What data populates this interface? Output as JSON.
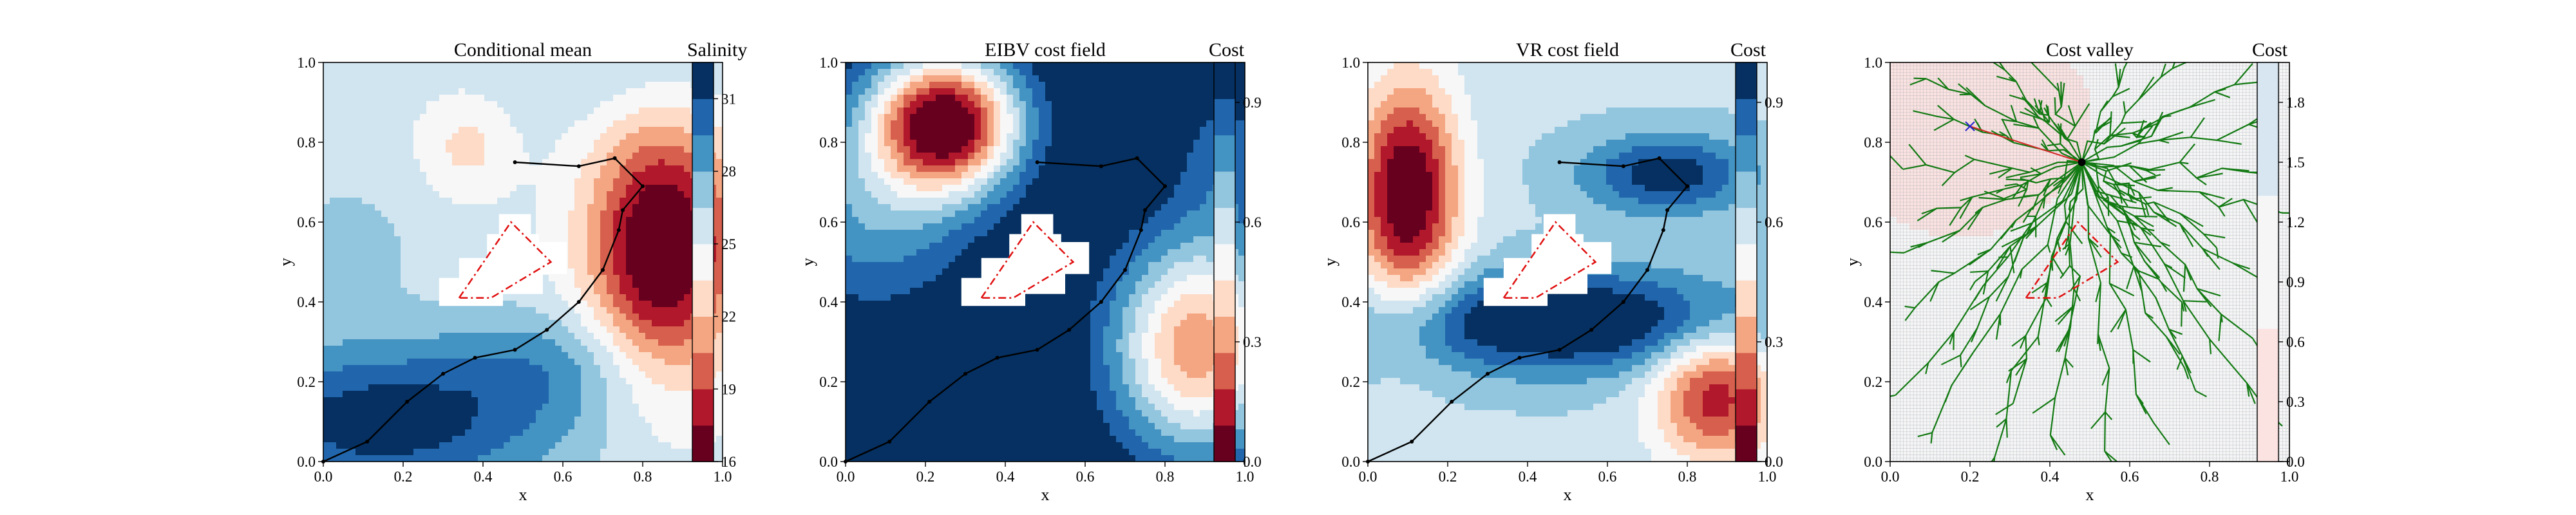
{
  "chart_data": [
    {
      "type": "heatmap",
      "title": "Conditional mean",
      "xlabel": "x",
      "ylabel": "y",
      "xlim": [
        0,
        1
      ],
      "ylim": [
        0,
        1
      ],
      "xticks": [
        "0.0",
        "0.2",
        "0.4",
        "0.6",
        "0.8",
        "1.0"
      ],
      "yticks": [
        "0.0",
        "0.2",
        "0.4",
        "0.6",
        "0.8",
        "1.0"
      ],
      "colorbar": {
        "label": "Salinity",
        "range": [
          16,
          32.5
        ],
        "ticks": [
          16,
          19,
          22,
          25,
          28,
          31
        ],
        "colors": [
          "#67001f",
          "#b2182b",
          "#d6604d",
          "#f4a582",
          "#fddbc7",
          "#f7f7f7",
          "#d1e5f0",
          "#92c5de",
          "#4393c3",
          "#2166ac",
          "#053061"
        ]
      },
      "field": {
        "base": 25.5,
        "bumps": [
          {
            "x": 0.85,
            "y": 0.53,
            "sx": 0.13,
            "sy": 0.23,
            "a": -10.5
          },
          {
            "x": 0.36,
            "y": 0.79,
            "sx": 0.08,
            "sy": 0.09,
            "a": -2.5
          },
          {
            "x": 0.15,
            "y": 0.1,
            "sx": 0.32,
            "sy": 0.14,
            "a": 6.5
          },
          {
            "x": 0.6,
            "y": 0.25,
            "sx": 0.2,
            "sy": 0.1,
            "a": 2.5
          },
          {
            "x": 0.05,
            "y": 0.55,
            "sx": 0.15,
            "sy": 0.12,
            "a": 1.5
          },
          {
            "x": 0.8,
            "y": 0.97,
            "sx": 0.25,
            "sy": 0.1,
            "a": 1.5
          }
        ]
      },
      "obstacle_outline": [
        [
          0.34,
          0.41
        ],
        [
          0.47,
          0.6
        ],
        [
          0.53,
          0.54
        ],
        [
          0.57,
          0.5
        ],
        [
          0.42,
          0.41
        ]
      ],
      "white_mask": [
        [
          0.29,
          0.39
        ],
        [
          0.29,
          0.46
        ],
        [
          0.34,
          0.46
        ],
        [
          0.34,
          0.51
        ],
        [
          0.41,
          0.51
        ],
        [
          0.41,
          0.57
        ],
        [
          0.44,
          0.57
        ],
        [
          0.44,
          0.62
        ],
        [
          0.52,
          0.62
        ],
        [
          0.52,
          0.57
        ],
        [
          0.54,
          0.57
        ],
        [
          0.54,
          0.55
        ],
        [
          0.61,
          0.55
        ],
        [
          0.61,
          0.47
        ],
        [
          0.55,
          0.47
        ],
        [
          0.55,
          0.42
        ],
        [
          0.45,
          0.42
        ],
        [
          0.45,
          0.39
        ]
      ],
      "path": [
        [
          0.0,
          0.0
        ],
        [
          0.11,
          0.05
        ],
        [
          0.21,
          0.15
        ],
        [
          0.3,
          0.22
        ],
        [
          0.38,
          0.26
        ],
        [
          0.48,
          0.28
        ],
        [
          0.56,
          0.33
        ],
        [
          0.64,
          0.4
        ],
        [
          0.7,
          0.48
        ],
        [
          0.74,
          0.58
        ],
        [
          0.75,
          0.63
        ],
        [
          0.8,
          0.69
        ],
        [
          0.73,
          0.76
        ],
        [
          0.64,
          0.74
        ],
        [
          0.48,
          0.75
        ]
      ]
    },
    {
      "type": "heatmap",
      "title": "EIBV cost field",
      "xlabel": "x",
      "ylabel": "y",
      "xlim": [
        0,
        1
      ],
      "ylim": [
        0,
        1
      ],
      "xticks": [
        "0.0",
        "0.2",
        "0.4",
        "0.6",
        "0.8",
        "1.0"
      ],
      "yticks": [
        "0.0",
        "0.2",
        "0.4",
        "0.6",
        "0.8",
        "1.0"
      ],
      "colorbar": {
        "label": "Cost",
        "range": [
          0,
          1
        ],
        "ticks": [
          "0.0",
          "0.3",
          "0.6",
          "0.9"
        ],
        "colors": [
          "#67001f",
          "#b2182b",
          "#d6604d",
          "#f4a582",
          "#fddbc7",
          "#f7f7f7",
          "#d1e5f0",
          "#92c5de",
          "#4393c3",
          "#2166ac",
          "#053061"
        ]
      },
      "field": {
        "base": 1.05,
        "bumps": [
          {
            "x": 0.25,
            "y": 0.85,
            "sx": 0.13,
            "sy": 0.12,
            "a": -1.05
          },
          {
            "x": 0.07,
            "y": 0.63,
            "sx": 0.18,
            "sy": 0.18,
            "a": -0.3
          },
          {
            "x": 0.88,
            "y": 0.29,
            "sx": 0.15,
            "sy": 0.19,
            "a": -0.75
          },
          {
            "x": 0.95,
            "y": 0.76,
            "sx": 0.09,
            "sy": 0.14,
            "a": -0.18
          }
        ]
      },
      "obstacle_outline": [
        [
          0.34,
          0.41
        ],
        [
          0.47,
          0.6
        ],
        [
          0.53,
          0.54
        ],
        [
          0.57,
          0.5
        ],
        [
          0.42,
          0.41
        ]
      ],
      "white_mask": [
        [
          0.29,
          0.39
        ],
        [
          0.29,
          0.46
        ],
        [
          0.34,
          0.46
        ],
        [
          0.34,
          0.51
        ],
        [
          0.41,
          0.51
        ],
        [
          0.41,
          0.57
        ],
        [
          0.44,
          0.57
        ],
        [
          0.44,
          0.62
        ],
        [
          0.52,
          0.62
        ],
        [
          0.52,
          0.57
        ],
        [
          0.54,
          0.57
        ],
        [
          0.54,
          0.55
        ],
        [
          0.61,
          0.55
        ],
        [
          0.61,
          0.47
        ],
        [
          0.55,
          0.47
        ],
        [
          0.55,
          0.42
        ],
        [
          0.45,
          0.42
        ],
        [
          0.45,
          0.39
        ]
      ],
      "path": [
        [
          0.0,
          0.0
        ],
        [
          0.11,
          0.05
        ],
        [
          0.21,
          0.15
        ],
        [
          0.3,
          0.22
        ],
        [
          0.38,
          0.26
        ],
        [
          0.48,
          0.28
        ],
        [
          0.56,
          0.33
        ],
        [
          0.64,
          0.4
        ],
        [
          0.7,
          0.48
        ],
        [
          0.74,
          0.58
        ],
        [
          0.75,
          0.63
        ],
        [
          0.8,
          0.69
        ],
        [
          0.73,
          0.76
        ],
        [
          0.64,
          0.74
        ],
        [
          0.48,
          0.75
        ]
      ]
    },
    {
      "type": "heatmap",
      "title": "VR cost field",
      "xlabel": "x",
      "ylabel": "y",
      "xlim": [
        0,
        1
      ],
      "ylim": [
        0,
        1
      ],
      "xticks": [
        "0.0",
        "0.2",
        "0.4",
        "0.6",
        "0.8",
        "1.0"
      ],
      "yticks": [
        "0.0",
        "0.2",
        "0.4",
        "0.6",
        "0.8",
        "1.0"
      ],
      "colorbar": {
        "label": "Cost",
        "range": [
          0,
          1
        ],
        "ticks": [
          "0.0",
          "0.3",
          "0.6",
          "0.9"
        ],
        "colors": [
          "#67001f",
          "#b2182b",
          "#d6604d",
          "#f4a582",
          "#fddbc7",
          "#f7f7f7",
          "#d1e5f0",
          "#92c5de",
          "#4393c3",
          "#2166ac",
          "#053061"
        ]
      },
      "field": {
        "base": 0.62,
        "bumps": [
          {
            "x": 0.1,
            "y": 0.67,
            "sx": 0.09,
            "sy": 0.2,
            "a": -0.65
          },
          {
            "x": 0.87,
            "y": 0.17,
            "sx": 0.11,
            "sy": 0.12,
            "a": -0.5
          },
          {
            "x": 0.5,
            "y": 0.35,
            "sx": 0.35,
            "sy": 0.09,
            "a": 0.45
          },
          {
            "x": 0.75,
            "y": 0.72,
            "sx": 0.15,
            "sy": 0.07,
            "a": 0.35
          }
        ]
      },
      "obstacle_outline": [
        [
          0.34,
          0.41
        ],
        [
          0.47,
          0.6
        ],
        [
          0.53,
          0.54
        ],
        [
          0.57,
          0.5
        ],
        [
          0.42,
          0.41
        ]
      ],
      "white_mask": [
        [
          0.29,
          0.39
        ],
        [
          0.29,
          0.46
        ],
        [
          0.34,
          0.46
        ],
        [
          0.34,
          0.51
        ],
        [
          0.41,
          0.51
        ],
        [
          0.41,
          0.57
        ],
        [
          0.44,
          0.57
        ],
        [
          0.44,
          0.62
        ],
        [
          0.52,
          0.62
        ],
        [
          0.52,
          0.57
        ],
        [
          0.54,
          0.57
        ],
        [
          0.54,
          0.55
        ],
        [
          0.61,
          0.55
        ],
        [
          0.61,
          0.47
        ],
        [
          0.55,
          0.47
        ],
        [
          0.55,
          0.42
        ],
        [
          0.45,
          0.42
        ],
        [
          0.45,
          0.39
        ]
      ],
      "path": [
        [
          0.0,
          0.0
        ],
        [
          0.11,
          0.05
        ],
        [
          0.21,
          0.15
        ],
        [
          0.3,
          0.22
        ],
        [
          0.38,
          0.26
        ],
        [
          0.48,
          0.28
        ],
        [
          0.56,
          0.33
        ],
        [
          0.64,
          0.4
        ],
        [
          0.7,
          0.48
        ],
        [
          0.74,
          0.58
        ],
        [
          0.75,
          0.63
        ],
        [
          0.8,
          0.69
        ],
        [
          0.73,
          0.76
        ],
        [
          0.64,
          0.74
        ],
        [
          0.48,
          0.75
        ]
      ]
    },
    {
      "type": "heatmap",
      "title": "Cost valley",
      "xlabel": "x",
      "ylabel": "y",
      "xlim": [
        0,
        1
      ],
      "ylim": [
        0,
        1
      ],
      "xticks": [
        "0.0",
        "0.2",
        "0.4",
        "0.6",
        "0.8",
        "1.0"
      ],
      "yticks": [
        "0.0",
        "0.2",
        "0.4",
        "0.6",
        "0.8",
        "1.0"
      ],
      "colorbar": {
        "label": "Cost",
        "range": [
          0,
          2
        ],
        "ticks": [
          "0.0",
          "0.3",
          "0.6",
          "0.9",
          "1.2",
          "1.5",
          "1.8"
        ],
        "colors": [
          "#fbe3e1",
          "#f6f6f6",
          "#d8e6f1"
        ]
      },
      "field": {
        "base": 0.75,
        "bumps": [
          {
            "x": 0.2,
            "y": 0.83,
            "sx": 0.17,
            "sy": 0.15,
            "a": -0.5
          },
          {
            "x": 0.9,
            "y": 0.2,
            "sx": 0.35,
            "sy": 0.3,
            "a": 0.3
          }
        ]
      },
      "obstacle_outline": [
        [
          0.34,
          0.41
        ],
        [
          0.47,
          0.6
        ],
        [
          0.53,
          0.54
        ],
        [
          0.57,
          0.5
        ],
        [
          0.42,
          0.41
        ]
      ],
      "white_mask": [],
      "current_location": [
        0.48,
        0.75
      ],
      "next_waypoint": [
        0.2,
        0.84
      ],
      "tree_branches": [
        [
          0.08,
          0.97
        ],
        [
          0.28,
          0.99
        ],
        [
          0.4,
          0.95
        ],
        [
          0.58,
          0.97
        ],
        [
          0.7,
          0.99
        ],
        [
          0.86,
          0.95
        ],
        [
          0.95,
          0.85
        ],
        [
          0.9,
          0.72
        ],
        [
          0.97,
          0.62
        ],
        [
          0.83,
          0.55
        ],
        [
          0.93,
          0.46
        ],
        [
          0.72,
          0.4
        ],
        [
          0.9,
          0.31
        ],
        [
          0.78,
          0.19
        ],
        [
          0.95,
          0.12
        ],
        [
          0.66,
          0.08
        ],
        [
          0.55,
          0.02
        ],
        [
          0.4,
          0.05
        ],
        [
          0.26,
          0.02
        ],
        [
          0.12,
          0.08
        ],
        [
          0.03,
          0.18
        ],
        [
          0.16,
          0.27
        ],
        [
          0.05,
          0.38
        ],
        [
          0.22,
          0.45
        ],
        [
          0.03,
          0.52
        ],
        [
          0.12,
          0.62
        ],
        [
          0.03,
          0.73
        ],
        [
          0.12,
          0.86
        ],
        [
          0.3,
          0.68
        ],
        [
          0.62,
          0.66
        ],
        [
          0.67,
          0.86
        ],
        [
          0.35,
          0.9
        ],
        [
          0.6,
          0.58
        ],
        [
          0.45,
          0.33
        ],
        [
          0.3,
          0.16
        ],
        [
          0.72,
          0.24
        ]
      ]
    }
  ]
}
